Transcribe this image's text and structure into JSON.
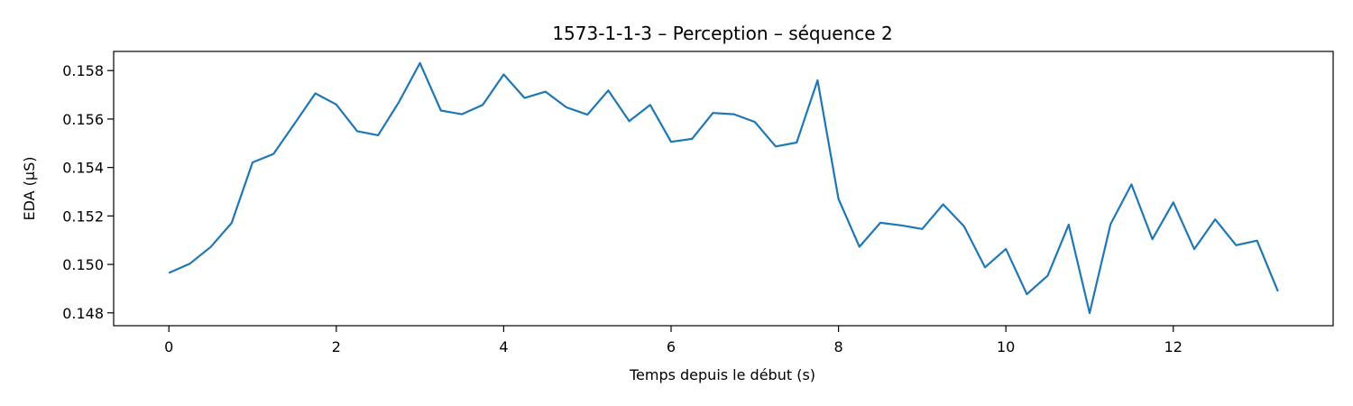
{
  "chart_data": {
    "type": "line",
    "title": "1573-1-1-3 – Perception – séquence 2",
    "xlabel": "Temps depuis le début (s)",
    "ylabel": "EDA (µS)",
    "xlim": [
      -0.66,
      13.91
    ],
    "ylim": [
      0.14747,
      0.15879
    ],
    "xticks": [
      0,
      2,
      4,
      6,
      8,
      10,
      12
    ],
    "yticks": [
      0.148,
      0.15,
      0.152,
      0.154,
      0.156,
      0.158
    ],
    "grid": false,
    "color": "#1f77b4",
    "series": [
      {
        "x": [
          0,
          0.25,
          0.5,
          0.75,
          1.0,
          1.25,
          1.5,
          1.75,
          2.0,
          2.25,
          2.5,
          2.75,
          3.0,
          3.25,
          3.5,
          3.75,
          4.0,
          4.25,
          4.5,
          4.75,
          5.0,
          5.25,
          5.5,
          5.75,
          6.0,
          6.25,
          6.5,
          6.75,
          7.0,
          7.25,
          7.5,
          7.75,
          8.0,
          8.25,
          8.5,
          8.75,
          9.0,
          9.25,
          9.5,
          9.75,
          10.0,
          10.25,
          10.5,
          10.75,
          11.0,
          11.25,
          11.5,
          11.75,
          12.0,
          12.25,
          12.5,
          12.75,
          13.0,
          13.25
        ],
        "y": [
          0.14965,
          0.15003,
          0.15072,
          0.15171,
          0.15421,
          0.15456,
          0.1558,
          0.15706,
          0.1566,
          0.1555,
          0.15533,
          0.15671,
          0.15831,
          0.15635,
          0.1562,
          0.15658,
          0.15784,
          0.15687,
          0.15713,
          0.15648,
          0.15618,
          0.15718,
          0.15591,
          0.15658,
          0.15506,
          0.15518,
          0.15625,
          0.1562,
          0.15588,
          0.15487,
          0.15503,
          0.1576,
          0.1527,
          0.15073,
          0.15172,
          0.15161,
          0.15146,
          0.15248,
          0.15157,
          0.14988,
          0.15064,
          0.14877,
          0.14954,
          0.15164,
          0.14799,
          0.15166,
          0.1533,
          0.15104,
          0.15256,
          0.15063,
          0.15186,
          0.15079,
          0.15098,
          0.14889
        ]
      }
    ]
  }
}
